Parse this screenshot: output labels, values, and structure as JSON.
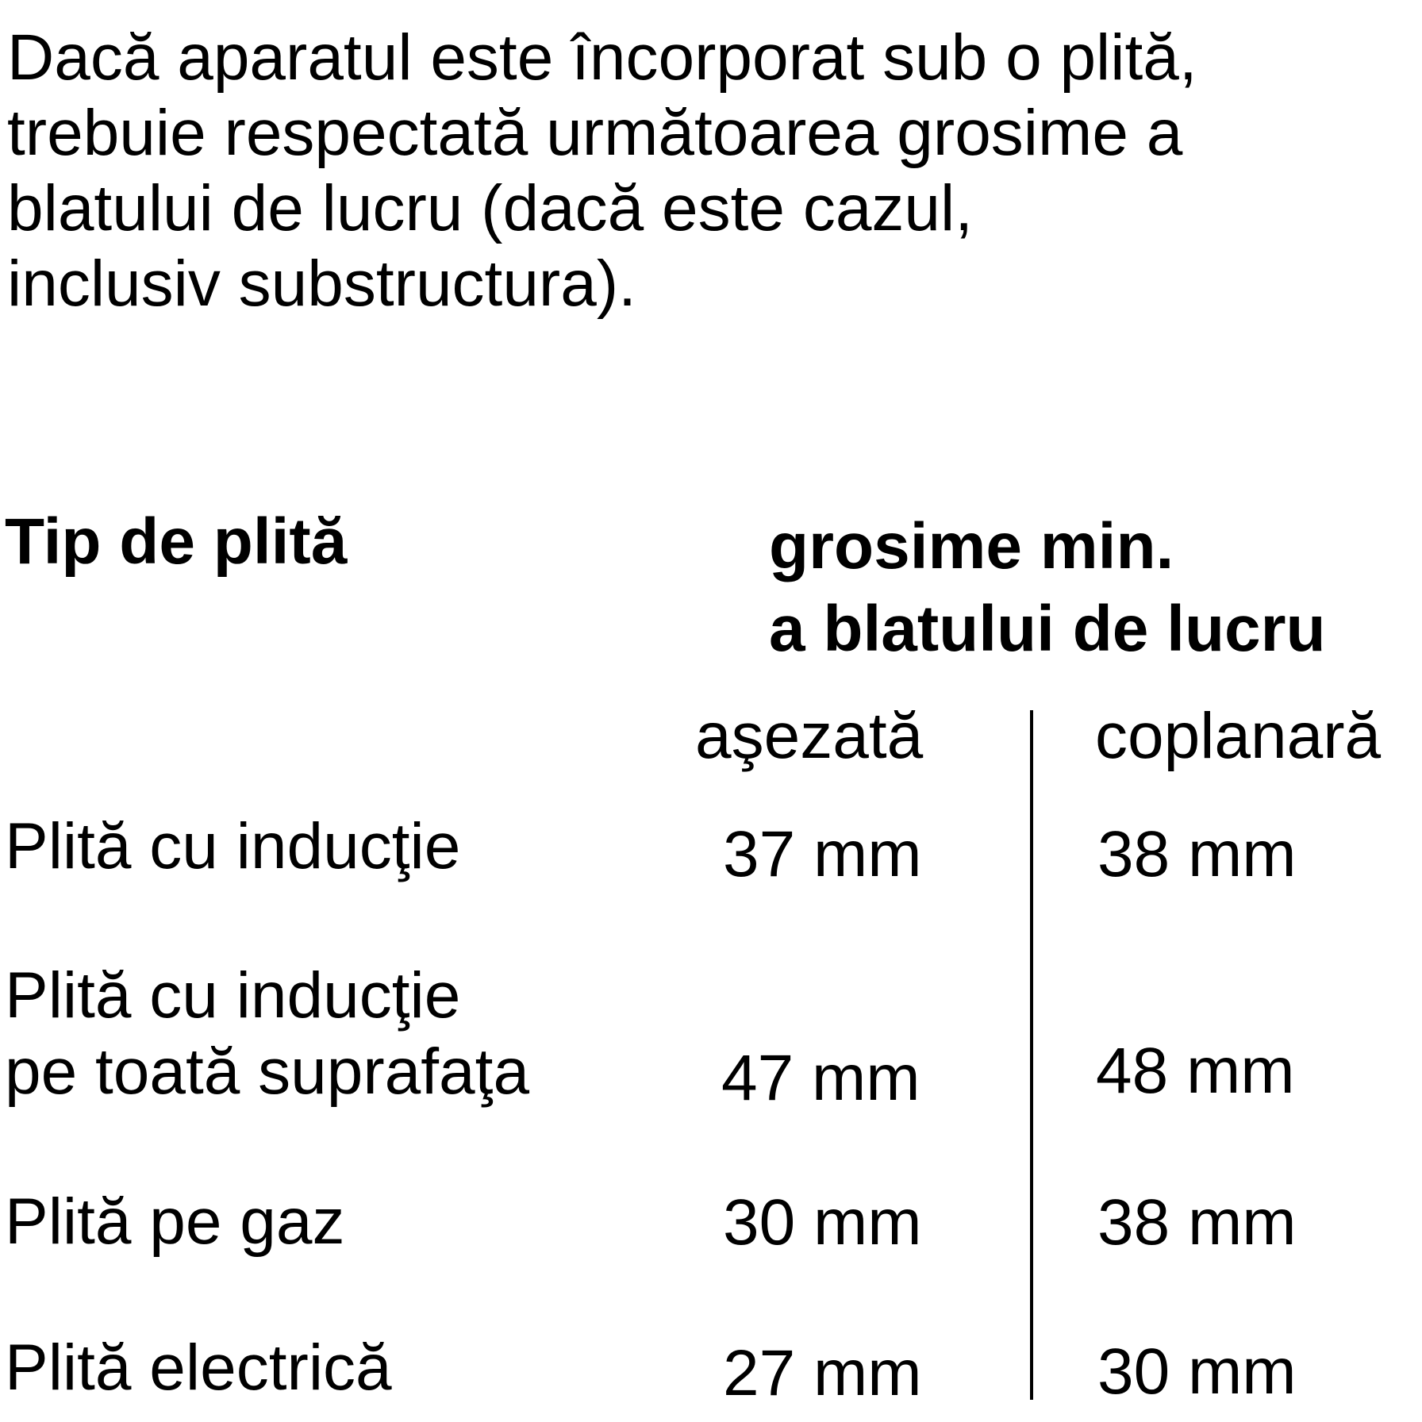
{
  "intro": [
    "Dacă aparatul este încorporat sub o plită,",
    "trebuie respectată următoarea grosime a",
    "blatului de lucru (dacă este cazul,",
    "inclusiv substructura)."
  ],
  "table": {
    "header_type": "Tip de plită",
    "header_thickness": [
      "grosime min.",
      "a blatului de lucru"
    ],
    "columns": [
      "aşezată",
      "coplanară"
    ],
    "rows": [
      {
        "type": [
          "Plită cu inducţie"
        ],
        "values": [
          "37 mm",
          "38 mm"
        ]
      },
      {
        "type": [
          "Plită cu inducţie",
          "pe toată suprafaţa"
        ],
        "values": [
          "47 mm",
          "48 mm"
        ]
      },
      {
        "type": [
          "Plită pe gaz"
        ],
        "values": [
          "30 mm",
          "38 mm"
        ]
      },
      {
        "type": [
          "Plită electrică"
        ],
        "values": [
          "27 mm",
          "30 mm"
        ]
      }
    ]
  }
}
